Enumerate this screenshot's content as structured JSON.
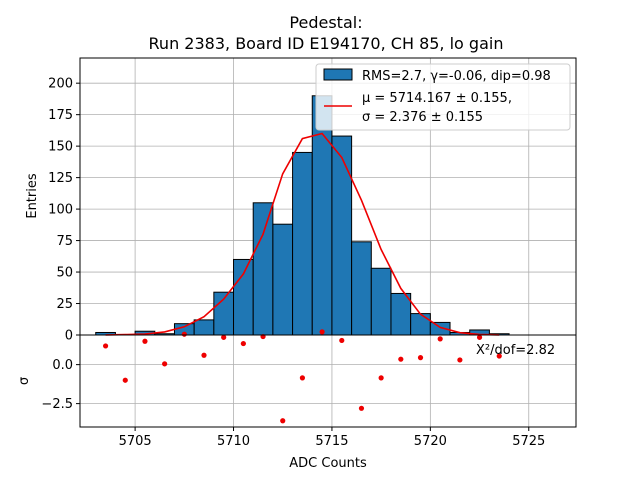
{
  "chart_data": [
    {
      "type": "bar",
      "title_line1": "Pedestal:",
      "title_line2": "Run 2383, Board ID E194170, CH 85, lo gain",
      "xlabel": "",
      "ylabel": "Entries",
      "xlim": [
        5702.2,
        5727.4
      ],
      "ylim": [
        0,
        220
      ],
      "grid": true,
      "legend_placement": "top-right",
      "yticks": [
        0,
        25,
        50,
        75,
        100,
        125,
        150,
        175,
        200
      ],
      "ytick_labels": [
        "0",
        "25",
        "50",
        "75",
        "100",
        "125",
        "150",
        "175",
        "200"
      ],
      "bar_color": "#1f77b4",
      "fit_color": "#ee0000",
      "histogram": {
        "name": "RMS=2.7, γ=-0.06, dip=0.98",
        "bin_edges": [
          5703,
          5704,
          5705,
          5706,
          5707,
          5708,
          5709,
          5710,
          5711,
          5712,
          5713,
          5714,
          5715,
          5716,
          5717,
          5718,
          5719,
          5720,
          5721,
          5722,
          5723,
          5724
        ],
        "counts": [
          2,
          0,
          3,
          1,
          9,
          12,
          34,
          60,
          105,
          88,
          145,
          190,
          158,
          74,
          53,
          33,
          17,
          10,
          2,
          4,
          1
        ]
      },
      "fit": {
        "name_line1": "μ = 5714.167 ± 0.155,",
        "name_line2": "σ = 2.376 ± 0.155",
        "x": [
          5703.5,
          5704.5,
          5705.5,
          5706.5,
          5707.5,
          5708.5,
          5709.5,
          5710.5,
          5711.5,
          5712.5,
          5713.5,
          5714.5,
          5715.5,
          5716.5,
          5717.5,
          5718.5,
          5719.5,
          5720.5,
          5721.5,
          5722.5,
          5723.5
        ],
        "y": [
          0.1,
          0.3,
          0.8,
          2.5,
          6.5,
          14.5,
          28.5,
          48.5,
          80,
          128,
          156,
          160,
          141,
          107,
          68,
          37,
          16.5,
          6,
          1.8,
          0.5,
          0.1
        ]
      }
    },
    {
      "type": "scatter",
      "xlabel": "ADC Counts",
      "ylabel": "σ",
      "xlim": [
        5702.2,
        5727.4
      ],
      "ylim": [
        -4.0,
        1.9
      ],
      "grid": true,
      "xticks": [
        5705,
        5710,
        5715,
        5720,
        5725
      ],
      "xtick_labels": [
        "5705",
        "5710",
        "5715",
        "5720",
        "5725"
      ],
      "yticks": [
        0.0,
        -2.5
      ],
      "ytick_labels": [
        "0.0",
        "−2.5"
      ],
      "annotation": "X²/dof=2.82",
      "point_color": "#ee0000",
      "x": [
        5703.5,
        5704.5,
        5705.5,
        5706.5,
        5707.5,
        5708.5,
        5709.5,
        5710.5,
        5711.5,
        5712.5,
        5713.5,
        5714.5,
        5715.5,
        5716.5,
        5717.5,
        5718.5,
        5719.5,
        5720.5,
        5721.5,
        5722.5,
        5723.5
      ],
      "y": [
        1.2,
        -1.0,
        1.5,
        0.05,
        1.95,
        0.6,
        1.75,
        1.35,
        1.8,
        -3.6,
        -0.85,
        2.1,
        1.55,
        -2.8,
        -0.85,
        0.35,
        0.45,
        1.65,
        0.3,
        1.75,
        0.55
      ]
    }
  ]
}
